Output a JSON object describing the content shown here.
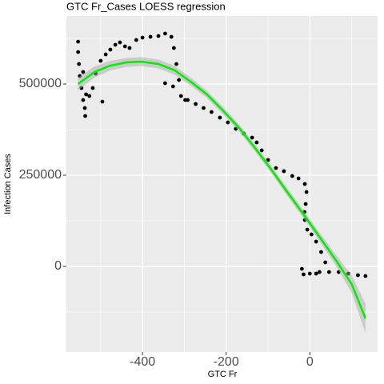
{
  "chart_data": {
    "type": "scatter_smooth",
    "title": "GTC Fr_Cases LOESS regression",
    "x_label": "GTC Fr",
    "y_label": "Infection Cases",
    "xlim": [
      -582,
      162
    ],
    "ylim": [
      -234600,
      686400
    ],
    "xticks": [
      -400,
      -200,
      0
    ],
    "yticks": [
      0,
      250000,
      500000
    ],
    "x_minor_ticks": [
      -500,
      -300,
      -100,
      100
    ],
    "y_minor_ticks": [
      -125000,
      125000,
      375000,
      625000
    ],
    "grid": true,
    "background": "#ebebeb",
    "points": {
      "color": "#000000",
      "x": [
        -554,
        -554,
        -552,
        -550,
        -546,
        -542,
        -538,
        -537,
        -535,
        -527,
        -519,
        -512,
        -500,
        -488,
        -477,
        -465,
        -454,
        -442,
        -431,
        -415,
        -400,
        -381,
        -362,
        -346,
        -331,
        -325,
        -319,
        -313,
        -327,
        -346,
        -308,
        -292,
        -273,
        -254,
        -235,
        -215,
        -196,
        -177,
        -158,
        -138,
        -127,
        -115,
        -100,
        -81,
        -62,
        -42,
        -27,
        -12,
        -8,
        -10,
        -13,
        -12,
        -6,
        4,
        15,
        27,
        37,
        23,
        0,
        -19,
        -15,
        15,
        46,
        69,
        92,
        115,
        133,
        -496,
        -542,
        -298
      ],
      "y": [
        616000,
        587700,
        554800,
        521900,
        489000,
        456100,
        434200,
        412300,
        471500,
        467100,
        489000,
        528500,
        563600,
        581100,
        594300,
        607500,
        614000,
        603100,
        598700,
        620600,
        627200,
        629400,
        631600,
        638200,
        629400,
        598700,
        554800,
        511000,
        493400,
        502200,
        467100,
        456100,
        445200,
        434200,
        423200,
        407900,
        394700,
        377200,
        364000,
        353100,
        339900,
        318000,
        291700,
        269700,
        261000,
        247800,
        241200,
        225900,
        203900,
        171100,
        149100,
        127200,
        100900,
        87700,
        68000,
        39500,
        11000,
        -15400,
        -19700,
        -6600,
        -21900,
        -19700,
        -15400,
        -15400,
        -19700,
        -24100,
        -26300,
        451700,
        532900,
        456100
      ]
    },
    "smooth": {
      "color": "#00ee00",
      "band_color": "#a9a9a9",
      "x": [
        -554,
        -515,
        -477,
        -438,
        -404,
        -362,
        -323,
        -285,
        -246,
        -208,
        -169,
        -131,
        -92,
        -54,
        -15,
        23,
        62,
        100,
        133
      ],
      "y": [
        500000,
        532900,
        550400,
        559200,
        561400,
        554800,
        537300,
        506600,
        471500,
        427600,
        379400,
        324600,
        265400,
        204000,
        142600,
        81100,
        17500,
        -48300,
        -142500
      ],
      "lower": [
        482000,
        517900,
        537400,
        547200,
        549400,
        542800,
        525300,
        495600,
        461500,
        417600,
        369400,
        314600,
        255400,
        193000,
        131600,
        69100,
        2500,
        -72300,
        -182500
      ],
      "upper": [
        518000,
        547900,
        563400,
        571200,
        573400,
        566800,
        549300,
        517600,
        481500,
        437600,
        389400,
        334600,
        275400,
        215000,
        153600,
        93100,
        32500,
        -24300,
        -102500
      ]
    }
  }
}
